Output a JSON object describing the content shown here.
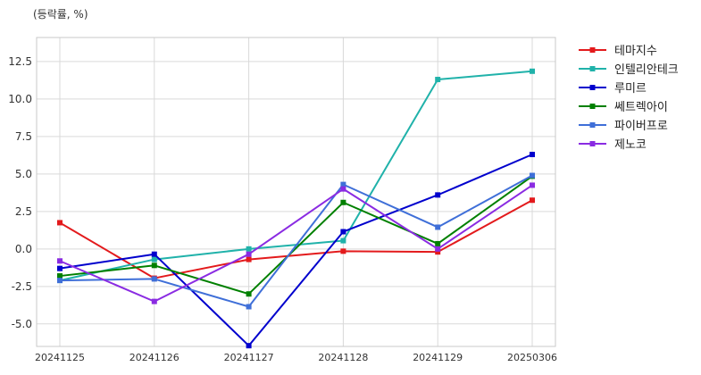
{
  "chart_data": {
    "type": "line",
    "unit_label": "(등락률, %)",
    "categories": [
      "20241125",
      "20241126",
      "20241127",
      "20241128",
      "20241129",
      "20250306"
    ],
    "ylim": [
      -6.5,
      14.1
    ],
    "yticks": [
      -5.0,
      -2.5,
      0.0,
      2.5,
      5.0,
      7.5,
      10.0,
      12.5
    ],
    "ytick_labels": [
      "-5.0",
      "-2.5",
      "0.0",
      "2.5",
      "5.0",
      "7.5",
      "10.0",
      "12.5"
    ],
    "grid": true,
    "legend_position": "right",
    "series": [
      {
        "name": "테마지수",
        "color": "#e31a1c",
        "values": [
          1.75,
          -1.95,
          -0.7,
          -0.15,
          -0.2,
          3.25
        ]
      },
      {
        "name": "인텔리안테크",
        "color": "#20b2aa",
        "values": [
          -2.1,
          -0.7,
          0.0,
          0.55,
          11.3,
          11.85
        ]
      },
      {
        "name": "루미르",
        "color": "#0000cd",
        "values": [
          -1.3,
          -0.35,
          -6.45,
          1.15,
          3.6,
          6.3
        ]
      },
      {
        "name": "쎄트렉아이",
        "color": "#008000",
        "values": [
          -1.8,
          -1.1,
          -3.0,
          3.1,
          0.35,
          4.85
        ]
      },
      {
        "name": "파이버프로",
        "color": "#3f6fd8",
        "values": [
          -2.1,
          -2.0,
          -3.85,
          4.3,
          1.45,
          4.9
        ]
      },
      {
        "name": "제노코",
        "color": "#8a2be2",
        "values": [
          -0.8,
          -3.5,
          -0.35,
          4.0,
          0.0,
          4.25
        ]
      }
    ]
  }
}
